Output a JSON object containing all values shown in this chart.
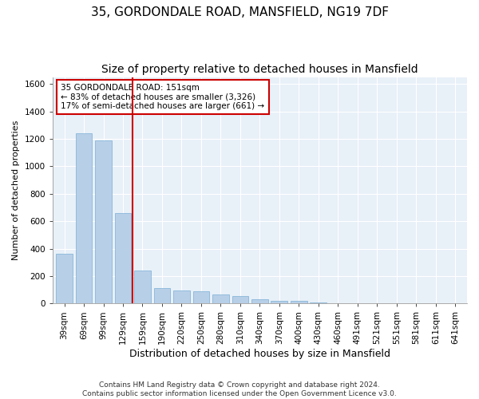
{
  "title1": "35, GORDONDALE ROAD, MANSFIELD, NG19 7DF",
  "title2": "Size of property relative to detached houses in Mansfield",
  "xlabel": "Distribution of detached houses by size in Mansfield",
  "ylabel": "Number of detached properties",
  "categories": [
    "39sqm",
    "69sqm",
    "99sqm",
    "129sqm",
    "159sqm",
    "190sqm",
    "220sqm",
    "250sqm",
    "280sqm",
    "310sqm",
    "340sqm",
    "370sqm",
    "400sqm",
    "430sqm",
    "460sqm",
    "491sqm",
    "521sqm",
    "551sqm",
    "581sqm",
    "611sqm",
    "641sqm"
  ],
  "values": [
    360,
    1240,
    1190,
    660,
    240,
    110,
    95,
    90,
    65,
    55,
    30,
    20,
    18,
    5,
    0,
    0,
    0,
    0,
    0,
    0,
    0
  ],
  "bar_color": "#b8cfe8",
  "bar_edge_color": "#7aafd4",
  "vline_color": "#cc0000",
  "annotation_text": "35 GORDONDALE ROAD: 151sqm\n← 83% of detached houses are smaller (3,326)\n17% of semi-detached houses are larger (661) →",
  "annotation_box_color": "#ffffff",
  "annotation_box_edge": "#cc0000",
  "ylim": [
    0,
    1650
  ],
  "yticks": [
    0,
    200,
    400,
    600,
    800,
    1000,
    1200,
    1400,
    1600
  ],
  "background_color": "#e8f0f8",
  "footer": "Contains HM Land Registry data © Crown copyright and database right 2024.\nContains public sector information licensed under the Open Government Licence v3.0.",
  "title1_fontsize": 11,
  "title2_fontsize": 10,
  "xlabel_fontsize": 9,
  "ylabel_fontsize": 8,
  "tick_fontsize": 7.5,
  "ann_fontsize": 7.5,
  "footer_fontsize": 6.5
}
